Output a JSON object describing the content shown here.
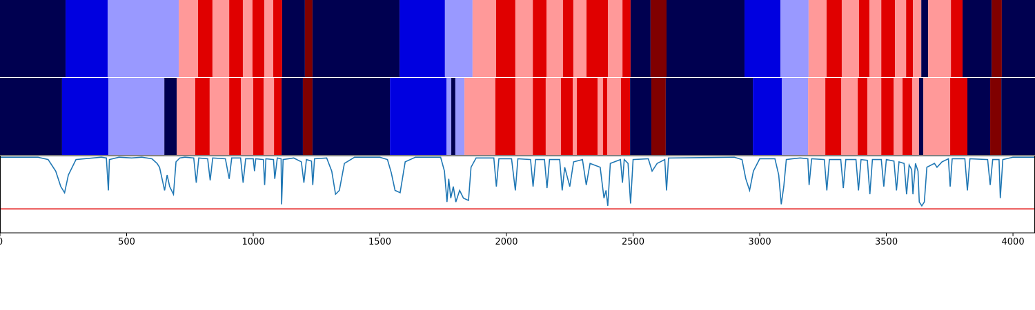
{
  "chart_data": {
    "type": "segments",
    "xlim": [
      0,
      4087
    ],
    "xticks": [
      0,
      500,
      1000,
      1500,
      2000,
      2500,
      3000,
      3500,
      4000
    ],
    "tracks": [
      {
        "boundaries": [
          0,
          259,
          425,
          706,
          782,
          839,
          905,
          959,
          997,
          1044,
          1079,
          1114,
          1204,
          1234,
          1578,
          1757,
          1866,
          1959,
          2035,
          2104,
          2158,
          2223,
          2264,
          2316,
          2401,
          2458,
          2490,
          2569,
          2632,
          2940,
          3082,
          3193,
          3264,
          3324,
          3392,
          3433,
          3480,
          3534,
          3578,
          3605,
          3638,
          3665,
          3755,
          3801,
          3916,
          3956,
          4087
        ],
        "colors": [
          "#000050",
          "#0000e0",
          "#9999ff",
          "#ff9999",
          "#e00000",
          "#ff9999",
          "#e00000",
          "#ff9999",
          "#e00000",
          "#ff9999",
          "#e00000",
          "#000050",
          "#800000",
          "#000050",
          "#0000e0",
          "#9999ff",
          "#ff9999",
          "#e00000",
          "#ff9999",
          "#e00000",
          "#ff9999",
          "#e00000",
          "#ff9999",
          "#e00000",
          "#ff9999",
          "#e00000",
          "#000050",
          "#800000",
          "#000050",
          "#0000e0",
          "#9999ff",
          "#ff9999",
          "#e00000",
          "#ff9999",
          "#e00000",
          "#ff9999",
          "#e00000",
          "#ff9999",
          "#e00000",
          "#ff9999",
          "#000050",
          "#ff9999",
          "#e00000",
          "#000050",
          "#800000",
          "#000050"
        ]
      },
      {
        "boundaries": [
          0,
          245,
          428,
          649,
          698,
          771,
          828,
          905,
          951,
          1000,
          1041,
          1082,
          1112,
          1196,
          1234,
          1540,
          1763,
          1782,
          1798,
          1834,
          1956,
          2035,
          2104,
          2155,
          2215,
          2262,
          2278,
          2360,
          2381,
          2398,
          2452,
          2488,
          2572,
          2629,
          2973,
          3087,
          3191,
          3259,
          3322,
          3387,
          3425,
          3480,
          3529,
          3564,
          3602,
          3629,
          3646,
          3752,
          3820,
          3910,
          3954,
          4087
        ],
        "colors": [
          "#000050",
          "#0000e0",
          "#9999ff",
          "#000050",
          "#ff9999",
          "#e00000",
          "#ff9999",
          "#e00000",
          "#ff9999",
          "#e00000",
          "#ff9999",
          "#e00000",
          "#000050",
          "#800000",
          "#000050",
          "#0000e0",
          "#9999ff",
          "#000050",
          "#9999ff",
          "#ff9999",
          "#e00000",
          "#ff9999",
          "#e00000",
          "#ff9999",
          "#e00000",
          "#ff9999",
          "#e00000",
          "#ff9999",
          "#e00000",
          "#ff9999",
          "#e00000",
          "#000050",
          "#800000",
          "#000050",
          "#0000e0",
          "#9999ff",
          "#ff9999",
          "#e00000",
          "#ff9999",
          "#e00000",
          "#ff9999",
          "#e00000",
          "#ff9999",
          "#e00000",
          "#ff9999",
          "#000050",
          "#ff9999",
          "#e00000",
          "#000050",
          "#800000",
          "#000050"
        ]
      }
    ],
    "ylim": [
      0,
      1
    ],
    "threshold": {
      "value": 0.31,
      "color": "#e00000"
    },
    "line": {
      "color": "#1f77b4",
      "x": [
        0,
        150,
        190,
        220,
        240,
        255,
        270,
        300,
        400,
        420,
        428,
        432,
        470,
        520,
        560,
        600,
        620,
        630,
        640,
        650,
        660,
        670,
        685,
        695,
        710,
        730,
        765,
        775,
        785,
        820,
        830,
        840,
        890,
        905,
        915,
        950,
        960,
        970,
        1000,
        1005,
        1010,
        1040,
        1045,
        1050,
        1080,
        1085,
        1095,
        1110,
        1112,
        1118,
        1160,
        1190,
        1200,
        1210,
        1230,
        1235,
        1242,
        1290,
        1310,
        1325,
        1340,
        1360,
        1400,
        1500,
        1530,
        1545,
        1560,
        1580,
        1600,
        1640,
        1740,
        1755,
        1765,
        1772,
        1780,
        1790,
        1800,
        1815,
        1830,
        1850,
        1860,
        1880,
        1950,
        1960,
        1970,
        2020,
        2035,
        2045,
        2095,
        2105,
        2115,
        2150,
        2160,
        2170,
        2210,
        2220,
        2230,
        2250,
        2265,
        2300,
        2315,
        2330,
        2370,
        2385,
        2393,
        2400,
        2410,
        2450,
        2458,
        2465,
        2480,
        2490,
        2500,
        2560,
        2575,
        2595,
        2625,
        2632,
        2640,
        2900,
        2930,
        2945,
        2960,
        2975,
        3000,
        3060,
        3075,
        3085,
        3095,
        3105,
        3130,
        3160,
        3190,
        3195,
        3205,
        3255,
        3265,
        3275,
        3320,
        3330,
        3340,
        3380,
        3390,
        3400,
        3425,
        3435,
        3445,
        3480,
        3490,
        3500,
        3530,
        3540,
        3550,
        3570,
        3580,
        3590,
        3600,
        3605,
        3615,
        3625,
        3630,
        3640,
        3650,
        3660,
        3690,
        3700,
        3720,
        3745,
        3752,
        3760,
        3810,
        3820,
        3830,
        3900,
        3910,
        3920,
        3945,
        3950,
        3960,
        4000,
        4087
      ],
      "values": [
        0.98,
        0.98,
        0.95,
        0.8,
        0.6,
        0.52,
        0.75,
        0.95,
        0.98,
        0.97,
        0.55,
        0.95,
        0.98,
        0.97,
        0.98,
        0.96,
        0.9,
        0.85,
        0.7,
        0.55,
        0.75,
        0.6,
        0.5,
        0.92,
        0.97,
        0.98,
        0.97,
        0.65,
        0.97,
        0.96,
        0.68,
        0.97,
        0.96,
        0.7,
        0.97,
        0.97,
        0.65,
        0.96,
        0.96,
        0.8,
        0.96,
        0.95,
        0.62,
        0.96,
        0.95,
        0.7,
        0.97,
        0.96,
        0.37,
        0.95,
        0.97,
        0.92,
        0.65,
        0.95,
        0.93,
        0.62,
        0.96,
        0.97,
        0.8,
        0.5,
        0.55,
        0.9,
        0.98,
        0.98,
        0.95,
        0.78,
        0.55,
        0.52,
        0.92,
        0.98,
        0.98,
        0.8,
        0.4,
        0.7,
        0.45,
        0.6,
        0.4,
        0.55,
        0.45,
        0.42,
        0.85,
        0.97,
        0.97,
        0.6,
        0.96,
        0.96,
        0.55,
        0.96,
        0.95,
        0.6,
        0.95,
        0.95,
        0.58,
        0.95,
        0.95,
        0.55,
        0.85,
        0.6,
        0.92,
        0.95,
        0.62,
        0.9,
        0.85,
        0.45,
        0.55,
        0.35,
        0.9,
        0.95,
        0.65,
        0.95,
        0.9,
        0.38,
        0.95,
        0.96,
        0.8,
        0.9,
        0.95,
        0.55,
        0.97,
        0.98,
        0.95,
        0.7,
        0.55,
        0.8,
        0.96,
        0.96,
        0.75,
        0.37,
        0.6,
        0.95,
        0.96,
        0.97,
        0.96,
        0.62,
        0.96,
        0.95,
        0.55,
        0.95,
        0.95,
        0.58,
        0.95,
        0.95,
        0.55,
        0.95,
        0.94,
        0.5,
        0.95,
        0.95,
        0.6,
        0.95,
        0.93,
        0.55,
        0.92,
        0.9,
        0.5,
        0.88,
        0.82,
        0.5,
        0.9,
        0.8,
        0.4,
        0.35,
        0.4,
        0.85,
        0.9,
        0.85,
        0.92,
        0.96,
        0.6,
        0.96,
        0.96,
        0.55,
        0.96,
        0.95,
        0.62,
        0.95,
        0.95,
        0.45,
        0.95,
        0.98,
        0.98
      ]
    }
  }
}
